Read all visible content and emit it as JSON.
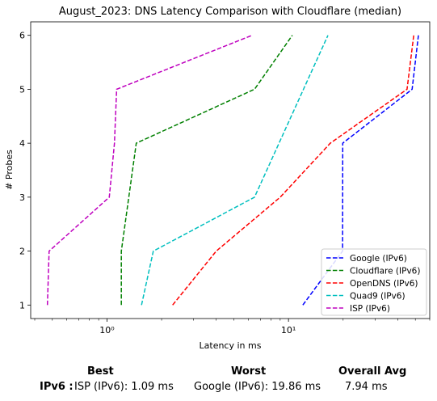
{
  "chart_data": {
    "type": "line",
    "title": "August_2023: DNS Latency Comparison with Cloudflare (median)",
    "xlabel": "Latency in ms",
    "ylabel": "# Probes",
    "x_scale": "log",
    "xlim": [
      0.38,
      60
    ],
    "ylim": [
      0.75,
      6.25
    ],
    "x_ticks": [
      1,
      10
    ],
    "x_tick_labels": [
      "10⁰",
      "10¹"
    ],
    "y_ticks": [
      1,
      2,
      3,
      4,
      5,
      6
    ],
    "legend_position": "lower-right",
    "series": [
      {
        "name": "Google (IPv6)",
        "color": "#0000ff",
        "x": [
          12.0,
          19.86,
          19.9,
          48.0,
          52.0
        ],
        "y": [
          1,
          2,
          4,
          5,
          6
        ]
      },
      {
        "name": "Cloudflare (IPv6)",
        "color": "#008000",
        "x": [
          1.2,
          1.2,
          1.45,
          6.5,
          10.5
        ],
        "y": [
          1,
          2,
          4,
          5,
          6
        ]
      },
      {
        "name": "OpenDNS (IPv6)",
        "color": "#ff0000",
        "x": [
          2.3,
          4.0,
          9.0,
          17.0,
          45.0,
          49.0
        ],
        "y": [
          1,
          2,
          3,
          4,
          5,
          6
        ]
      },
      {
        "name": "Quad9 (IPv6)",
        "color": "#00bfbf",
        "x": [
          1.55,
          1.8,
          6.5,
          16.5
        ],
        "y": [
          1,
          2,
          3,
          6
        ]
      },
      {
        "name": "ISP (IPv6)",
        "color": "#bf00bf",
        "x": [
          0.47,
          0.48,
          1.03,
          1.1,
          1.13,
          6.3
        ],
        "y": [
          1,
          2,
          3,
          4,
          5,
          6
        ]
      }
    ]
  },
  "summary": {
    "best_header": "Best",
    "worst_header": "Worst",
    "avg_header": "Overall Avg",
    "row_label": "IPv6 :",
    "best_value": "ISP (IPv6): 1.09 ms",
    "worst_value": "Google (IPv6): 19.86 ms",
    "avg_value": "7.94 ms"
  }
}
